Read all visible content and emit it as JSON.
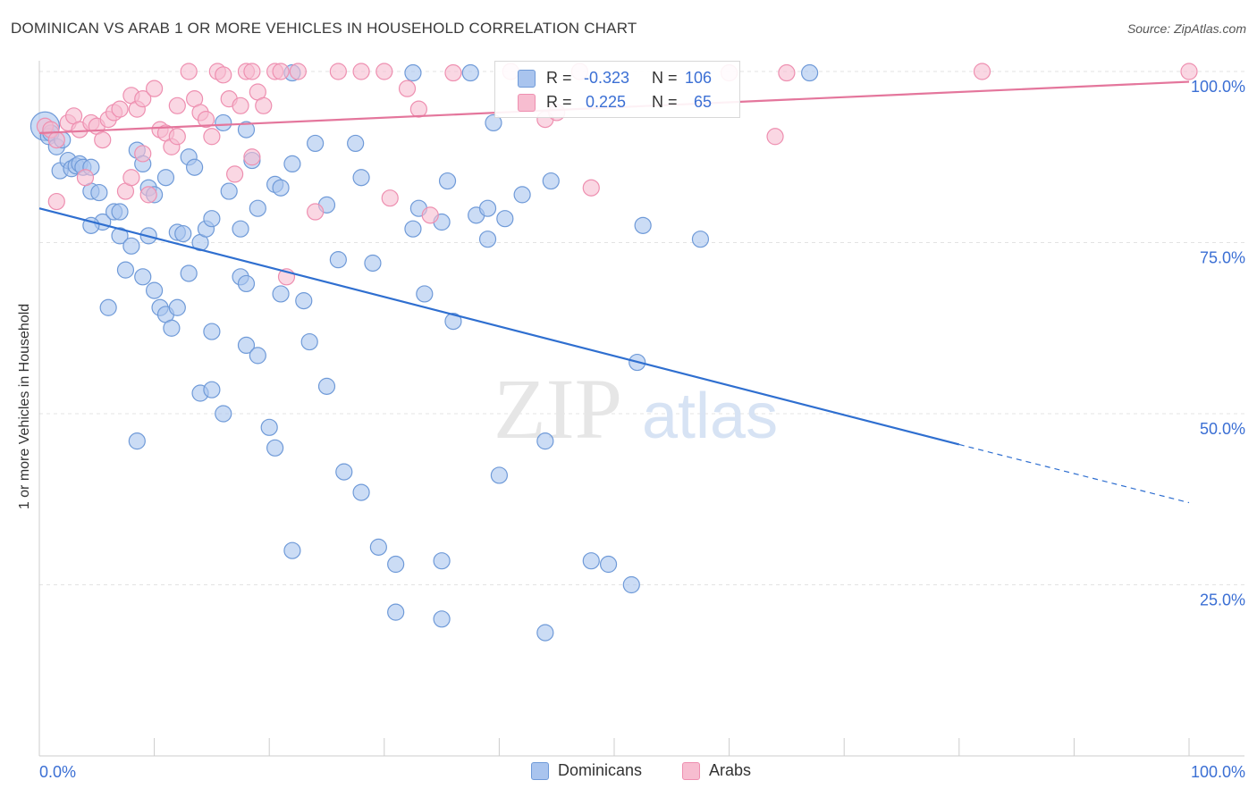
{
  "title": "DOMINICAN VS ARAB 1 OR MORE VEHICLES IN HOUSEHOLD CORRELATION CHART",
  "source": "Source: ZipAtlas.com",
  "watermark": {
    "zip": "ZIP",
    "atlas": "atlas"
  },
  "stats": {
    "r_label": "R =",
    "n_label": "N =",
    "dominicans": {
      "r": "-0.323",
      "n": "106"
    },
    "arabs": {
      "r": "0.225",
      "n": "65"
    }
  },
  "legend": {
    "dominicans": "Dominicans",
    "arabs": "Arabs"
  },
  "colors": {
    "dominicans_fill": "#a9c4ee",
    "dominicans_stroke": "#6f9ad8",
    "dominicans_line": "#2f6fd0",
    "arabs_fill": "#f7bdd0",
    "arabs_stroke": "#ee8fb0",
    "arabs_line": "#e4769c",
    "axis_text": "#3b6fd4",
    "grid": "#e3e3e3"
  },
  "chart_data": {
    "type": "scatter",
    "xlabel": "",
    "ylabel": "1 or more Vehicles in Household",
    "xlim": [
      0,
      100
    ],
    "ylim": [
      0,
      100
    ],
    "x_tick_labels": [
      "0.0%",
      "100.0%"
    ],
    "y_ticks": [
      25,
      50,
      75,
      100
    ],
    "y_tick_labels": [
      "25.0%",
      "50.0%",
      "75.0%",
      "100.0%"
    ],
    "grid": true,
    "series": [
      {
        "name": "Dominicans",
        "trend": {
          "x0": 0,
          "y0": 80.0,
          "x1": 80,
          "y1": 45.5,
          "dash_to_x": 100,
          "dash_to_y": 37.0
        },
        "points": [
          [
            0.5,
            92.0,
            1
          ],
          [
            0.8,
            90.5,
            0
          ],
          [
            1.0,
            91.0,
            0
          ],
          [
            1.5,
            89.0,
            0
          ],
          [
            2.0,
            90.0,
            0
          ],
          [
            1.8,
            85.5,
            0
          ],
          [
            2.5,
            87.0,
            0
          ],
          [
            2.8,
            85.8,
            0
          ],
          [
            3.2,
            86.2,
            0
          ],
          [
            3.5,
            86.5,
            0
          ],
          [
            3.8,
            86.0,
            0
          ],
          [
            4.5,
            86.0,
            0
          ],
          [
            4.5,
            82.5,
            0
          ],
          [
            5.2,
            82.3,
            0
          ],
          [
            5.5,
            78.0,
            0
          ],
          [
            6.5,
            79.5,
            0
          ],
          [
            7.0,
            79.5,
            0
          ],
          [
            4.5,
            77.5,
            0
          ],
          [
            7.0,
            76.0,
            0
          ],
          [
            8.0,
            74.5,
            0
          ],
          [
            8.5,
            88.5,
            0
          ],
          [
            9.0,
            86.5,
            0
          ],
          [
            9.5,
            83.0,
            0
          ],
          [
            10.0,
            82.0,
            0
          ],
          [
            11.0,
            84.5,
            0
          ],
          [
            9.5,
            76.0,
            0
          ],
          [
            12.0,
            76.5,
            0
          ],
          [
            12.5,
            76.3,
            0
          ],
          [
            13.0,
            87.5,
            0
          ],
          [
            13.5,
            86.0,
            0
          ],
          [
            14.0,
            75.0,
            0
          ],
          [
            14.5,
            77.0,
            0
          ],
          [
            15.0,
            78.5,
            0
          ],
          [
            16.0,
            92.5,
            0
          ],
          [
            18.0,
            91.5,
            0
          ],
          [
            18.5,
            87.0,
            0
          ],
          [
            16.5,
            82.5,
            0
          ],
          [
            19.0,
            80.0,
            0
          ],
          [
            17.5,
            77.0,
            0
          ],
          [
            20.5,
            83.5,
            0
          ],
          [
            21.0,
            83.0,
            0
          ],
          [
            22.0,
            86.5,
            0
          ],
          [
            24.0,
            89.5,
            0
          ],
          [
            25.0,
            80.5,
            0
          ],
          [
            27.5,
            89.5,
            0
          ],
          [
            28.0,
            84.5,
            0
          ],
          [
            21.0,
            67.5,
            0
          ],
          [
            23.0,
            66.5,
            0
          ],
          [
            26.0,
            72.5,
            0
          ],
          [
            29.0,
            72.0,
            0
          ],
          [
            7.5,
            71.0,
            0
          ],
          [
            9.0,
            70.0,
            0
          ],
          [
            10.0,
            68.0,
            0
          ],
          [
            13.0,
            70.5,
            0
          ],
          [
            17.5,
            70.0,
            0
          ],
          [
            18.0,
            69.0,
            0
          ],
          [
            10.5,
            65.5,
            0
          ],
          [
            11.0,
            64.5,
            0
          ],
          [
            12.0,
            65.5,
            0
          ],
          [
            6.0,
            65.5,
            0
          ],
          [
            11.5,
            62.5,
            0
          ],
          [
            15.0,
            62.0,
            0
          ],
          [
            18.0,
            60.0,
            0
          ],
          [
            19.0,
            58.5,
            0
          ],
          [
            23.5,
            60.5,
            0
          ],
          [
            14.0,
            53.0,
            0
          ],
          [
            15.0,
            53.5,
            0
          ],
          [
            16.0,
            50.0,
            0
          ],
          [
            8.5,
            46.0,
            0
          ],
          [
            20.0,
            48.0,
            0
          ],
          [
            20.5,
            45.0,
            0
          ],
          [
            25.0,
            54.0,
            0
          ],
          [
            26.5,
            41.5,
            0
          ],
          [
            28.0,
            38.5,
            0
          ],
          [
            29.5,
            30.5,
            0
          ],
          [
            31.0,
            28.0,
            0
          ],
          [
            22.0,
            30.0,
            0
          ],
          [
            35.0,
            28.5,
            0
          ],
          [
            31.0,
            21.0,
            0
          ],
          [
            35.0,
            20.0,
            0
          ],
          [
            32.5,
            77.0,
            0
          ],
          [
            33.0,
            80.0,
            0
          ],
          [
            33.5,
            67.5,
            0
          ],
          [
            35.0,
            78.0,
            0
          ],
          [
            35.5,
            84.0,
            0
          ],
          [
            36.0,
            63.5,
            0
          ],
          [
            38.0,
            79.0,
            0
          ],
          [
            39.0,
            80.0,
            0
          ],
          [
            39.0,
            75.5,
            0
          ],
          [
            39.5,
            92.5,
            0
          ],
          [
            40.0,
            41.0,
            0
          ],
          [
            40.5,
            78.5,
            0
          ],
          [
            42.0,
            82.0,
            0
          ],
          [
            44.0,
            46.0,
            0
          ],
          [
            44.5,
            84.0,
            0
          ],
          [
            44.0,
            18.0,
            0
          ],
          [
            48.0,
            28.5,
            0
          ],
          [
            49.5,
            28.0,
            0
          ],
          [
            51.5,
            25.0,
            0
          ],
          [
            52.0,
            57.5,
            0
          ],
          [
            52.5,
            77.5,
            0
          ],
          [
            57.5,
            75.5,
            0
          ],
          [
            32.5,
            99.8,
            0
          ],
          [
            22.0,
            99.8,
            0
          ],
          [
            67.0,
            99.8,
            0
          ],
          [
            37.5,
            99.8,
            0
          ]
        ]
      },
      {
        "name": "Arabs",
        "trend": {
          "x0": 0,
          "y0": 91.0,
          "x1": 100,
          "y1": 98.5
        },
        "points": [
          [
            0.5,
            92.0,
            0
          ],
          [
            1.0,
            91.5,
            0
          ],
          [
            1.5,
            90.0,
            0
          ],
          [
            2.5,
            92.5,
            0
          ],
          [
            1.5,
            81.0,
            0
          ],
          [
            3.0,
            93.5,
            0
          ],
          [
            3.5,
            91.5,
            0
          ],
          [
            4.0,
            84.5,
            0
          ],
          [
            4.5,
            92.5,
            0
          ],
          [
            5.0,
            92.0,
            0
          ],
          [
            5.5,
            90.0,
            0
          ],
          [
            6.0,
            93.0,
            0
          ],
          [
            6.5,
            94.0,
            0
          ],
          [
            7.0,
            94.5,
            0
          ],
          [
            7.5,
            82.5,
            0
          ],
          [
            8.0,
            84.5,
            0
          ],
          [
            8.0,
            96.5,
            0
          ],
          [
            8.5,
            94.5,
            0
          ],
          [
            9.0,
            96.0,
            0
          ],
          [
            9.0,
            88.0,
            0
          ],
          [
            9.5,
            82.0,
            0
          ],
          [
            10.0,
            97.5,
            0
          ],
          [
            10.5,
            91.5,
            0
          ],
          [
            11.0,
            91.0,
            0
          ],
          [
            11.5,
            89.0,
            0
          ],
          [
            12.0,
            95.0,
            0
          ],
          [
            12.0,
            90.5,
            0
          ],
          [
            13.0,
            100.0,
            0
          ],
          [
            13.5,
            96.0,
            0
          ],
          [
            14.0,
            94.0,
            0
          ],
          [
            14.5,
            93.0,
            0
          ],
          [
            15.0,
            90.5,
            0
          ],
          [
            15.5,
            100.0,
            0
          ],
          [
            16.0,
            99.5,
            0
          ],
          [
            16.5,
            96.0,
            0
          ],
          [
            17.0,
            85.0,
            0
          ],
          [
            17.5,
            95.0,
            0
          ],
          [
            18.0,
            100.0,
            0
          ],
          [
            18.5,
            100.0,
            0
          ],
          [
            19.0,
            97.0,
            0
          ],
          [
            19.5,
            95.0,
            0
          ],
          [
            18.5,
            87.5,
            0
          ],
          [
            20.5,
            100.0,
            0
          ],
          [
            21.0,
            100.0,
            0
          ],
          [
            21.5,
            70.0,
            0
          ],
          [
            22.5,
            100.0,
            0
          ],
          [
            24.0,
            79.5,
            0
          ],
          [
            26.0,
            100.0,
            0
          ],
          [
            28.0,
            100.0,
            0
          ],
          [
            30.0,
            100.0,
            0
          ],
          [
            30.5,
            81.5,
            0
          ],
          [
            32.0,
            97.5,
            0
          ],
          [
            33.0,
            94.5,
            0
          ],
          [
            34.0,
            79.0,
            0
          ],
          [
            36.0,
            99.8,
            0
          ],
          [
            41.0,
            100.0,
            0
          ],
          [
            44.0,
            93.0,
            0
          ],
          [
            45.0,
            94.0,
            0
          ],
          [
            47.0,
            100.0,
            0
          ],
          [
            48.0,
            83.0,
            0
          ],
          [
            60.0,
            99.8,
            0
          ],
          [
            64.0,
            90.5,
            0
          ],
          [
            65.0,
            99.8,
            0
          ],
          [
            82.0,
            100.0,
            0
          ],
          [
            100.0,
            100.0,
            0
          ]
        ]
      }
    ]
  }
}
